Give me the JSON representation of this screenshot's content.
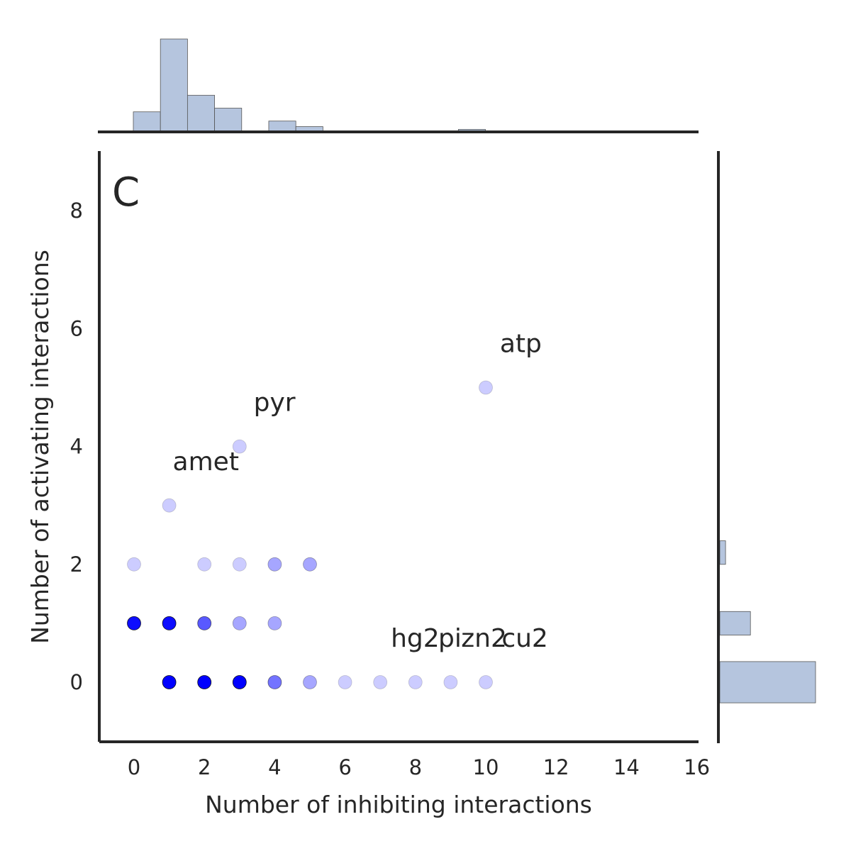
{
  "chart_data": {
    "type": "scatter",
    "panel_letter": "C",
    "xlabel": "Number of inhibiting interactions",
    "ylabel": "Number of activating interactions",
    "xlim": [
      -1,
      16
    ],
    "ylim": [
      -1,
      9
    ],
    "xticks": [
      0,
      2,
      4,
      6,
      8,
      10,
      12,
      14,
      16
    ],
    "yticks": [
      0,
      2,
      4,
      6,
      8
    ],
    "grid": false,
    "point_color": "#0000ff",
    "hist_color": "#b5c5de",
    "points": [
      {
        "x": 0,
        "y": 2,
        "alpha": 0.2
      },
      {
        "x": 2,
        "y": 2,
        "alpha": 0.2
      },
      {
        "x": 3,
        "y": 2,
        "alpha": 0.2
      },
      {
        "x": 4,
        "y": 2,
        "alpha": 0.35
      },
      {
        "x": 5,
        "y": 2,
        "alpha": 0.35
      },
      {
        "x": 0,
        "y": 1,
        "alpha": 0.95
      },
      {
        "x": 1,
        "y": 1,
        "alpha": 0.95
      },
      {
        "x": 2,
        "y": 1,
        "alpha": 0.65
      },
      {
        "x": 3,
        "y": 1,
        "alpha": 0.35
      },
      {
        "x": 4,
        "y": 1,
        "alpha": 0.35
      },
      {
        "x": 1,
        "y": 0,
        "alpha": 1.0
      },
      {
        "x": 2,
        "y": 0,
        "alpha": 1.0
      },
      {
        "x": 3,
        "y": 0,
        "alpha": 1.0
      },
      {
        "x": 4,
        "y": 0,
        "alpha": 0.55
      },
      {
        "x": 5,
        "y": 0,
        "alpha": 0.35
      },
      {
        "x": 6,
        "y": 0,
        "alpha": 0.2
      },
      {
        "x": 7,
        "y": 0,
        "alpha": 0.2
      },
      {
        "x": 8,
        "y": 0,
        "alpha": 0.2
      },
      {
        "x": 9,
        "y": 0,
        "alpha": 0.2
      },
      {
        "x": 10,
        "y": 0,
        "alpha": 0.2
      },
      {
        "x": 1,
        "y": 3,
        "alpha": 0.2
      },
      {
        "x": 3,
        "y": 4,
        "alpha": 0.2
      },
      {
        "x": 10,
        "y": 5,
        "alpha": 0.2
      }
    ],
    "annotations": [
      {
        "text": "amet",
        "x": 1.1,
        "y": 3.6
      },
      {
        "text": "pyr",
        "x": 3.4,
        "y": 4.6
      },
      {
        "text": "atp",
        "x": 10.4,
        "y": 5.6
      },
      {
        "text": "hg2",
        "x": 7.3,
        "y": 0.6
      },
      {
        "text": "pi",
        "x": 8.65,
        "y": 0.6
      },
      {
        "text": "zn2",
        "x": 9.3,
        "y": 0.6
      },
      {
        "text": "cu2",
        "x": 10.45,
        "y": 0.6
      }
    ],
    "hist_x": [
      {
        "start": -0.02,
        "end": 0.75,
        "count": 0.21
      },
      {
        "start": 0.75,
        "end": 1.52,
        "count": 1.0
      },
      {
        "start": 1.52,
        "end": 2.29,
        "count": 0.39
      },
      {
        "start": 2.29,
        "end": 3.06,
        "count": 0.25
      },
      {
        "start": 3.06,
        "end": 3.83,
        "count": 0.0
      },
      {
        "start": 3.83,
        "end": 4.6,
        "count": 0.11
      },
      {
        "start": 4.6,
        "end": 5.37,
        "count": 0.05
      },
      {
        "start": 9.22,
        "end": 9.99,
        "count": 0.02
      }
    ],
    "hist_y": [
      {
        "start": -0.35,
        "end": 0.35,
        "count": 1.0
      },
      {
        "start": 0.8,
        "end": 1.2,
        "count": 0.32
      },
      {
        "start": 2.0,
        "end": 2.4,
        "count": 0.06
      }
    ]
  }
}
